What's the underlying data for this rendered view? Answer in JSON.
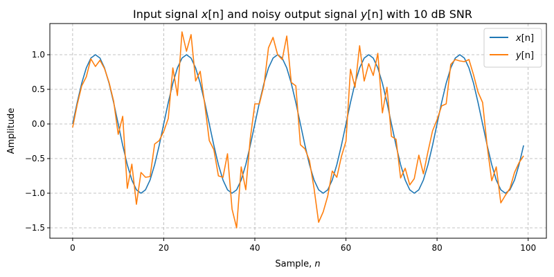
{
  "chart_data": {
    "type": "line",
    "title": "Input signal x[n] and noisy output signal y[n] with 10 dB SNR",
    "title_parts": {
      "prefix": "Input signal ",
      "x_sym": "x",
      "x_arg": "[n]",
      "middle": " and noisy output signal ",
      "y_sym": "y",
      "y_arg": "[n]",
      "suffix": " with 10 dB SNR"
    },
    "xlabel": "Sample, n",
    "xlabel_parts": {
      "text": "Sample, ",
      "sym": "n"
    },
    "ylabel": "Amplitude",
    "xlim": [
      -5,
      104
    ],
    "ylim": [
      -1.65,
      1.45
    ],
    "xticks": [
      0,
      20,
      40,
      60,
      80,
      100
    ],
    "xtick_labels": [
      "0",
      "20",
      "40",
      "60",
      "80",
      "100"
    ],
    "yticks": [
      -1.5,
      -1.0,
      -0.5,
      0.0,
      0.5,
      1.0
    ],
    "ytick_labels": [
      "−1.5",
      "−1.0",
      "−0.5",
      "0.0",
      "0.5",
      "1.0"
    ],
    "grid": true,
    "legend_position": "upper right",
    "colors": {
      "x": "#1f77b4",
      "y": "#ff7f0e"
    },
    "series": [
      {
        "name": "x[n]",
        "legend_sym": "x",
        "legend_arg": "[n]",
        "color": "#1f77b4",
        "formula": "sin(2*pi*n/20)",
        "x": "0..99",
        "values": [
          0.0,
          0.309,
          0.588,
          0.809,
          0.951,
          1.0,
          0.951,
          0.809,
          0.588,
          0.309,
          0.0,
          -0.309,
          -0.588,
          -0.809,
          -0.951,
          -1.0,
          -0.951,
          -0.809,
          -0.588,
          -0.309,
          0.0,
          0.309,
          0.588,
          0.809,
          0.951,
          1.0,
          0.951,
          0.809,
          0.588,
          0.309,
          0.0,
          -0.309,
          -0.588,
          -0.809,
          -0.951,
          -1.0,
          -0.951,
          -0.809,
          -0.588,
          -0.309,
          0.0,
          0.309,
          0.588,
          0.809,
          0.951,
          1.0,
          0.951,
          0.809,
          0.588,
          0.309,
          0.0,
          -0.309,
          -0.588,
          -0.809,
          -0.951,
          -1.0,
          -0.951,
          -0.809,
          -0.588,
          -0.309,
          0.0,
          0.309,
          0.588,
          0.809,
          0.951,
          1.0,
          0.951,
          0.809,
          0.588,
          0.309,
          0.0,
          -0.309,
          -0.588,
          -0.809,
          -0.951,
          -1.0,
          -0.951,
          -0.809,
          -0.588,
          -0.309,
          0.0,
          0.309,
          0.588,
          0.809,
          0.951,
          1.0,
          0.951,
          0.809,
          0.588,
          0.309,
          0.0,
          -0.309,
          -0.588,
          -0.809,
          -0.951,
          -1.0,
          -0.951,
          -0.809,
          -0.588,
          -0.309
        ]
      },
      {
        "name": "y[n]",
        "legend_sym": "y",
        "legend_arg": "[n]",
        "color": "#ff7f0e",
        "x": "0..99",
        "values": [
          -0.05,
          0.28,
          0.55,
          0.68,
          0.94,
          0.83,
          0.92,
          0.8,
          0.6,
          0.33,
          -0.15,
          0.11,
          -0.93,
          -0.58,
          -1.16,
          -0.7,
          -0.77,
          -0.76,
          -0.29,
          -0.24,
          -0.11,
          0.08,
          0.81,
          0.41,
          1.33,
          1.05,
          1.29,
          0.62,
          0.76,
          0.28,
          -0.24,
          -0.37,
          -0.75,
          -0.77,
          -0.43,
          -1.23,
          -1.5,
          -0.62,
          -0.95,
          -0.21,
          0.29,
          0.29,
          0.56,
          1.1,
          1.25,
          1.0,
          0.93,
          1.27,
          0.6,
          0.55,
          -0.3,
          -0.36,
          -0.53,
          -0.93,
          -1.42,
          -1.27,
          -1.04,
          -0.68,
          -0.77,
          -0.47,
          -0.25,
          0.79,
          0.53,
          1.13,
          0.62,
          0.87,
          0.7,
          1.02,
          0.16,
          0.53,
          -0.18,
          -0.22,
          -0.78,
          -0.64,
          -0.88,
          -0.79,
          -0.45,
          -0.72,
          -0.4,
          -0.1,
          0.06,
          0.26,
          0.29,
          0.86,
          0.93,
          0.91,
          0.9,
          0.93,
          0.71,
          0.46,
          0.31,
          -0.32,
          -0.82,
          -0.62,
          -1.14,
          -1.03,
          -0.93,
          -0.7,
          -0.56,
          -0.46
        ]
      }
    ]
  }
}
